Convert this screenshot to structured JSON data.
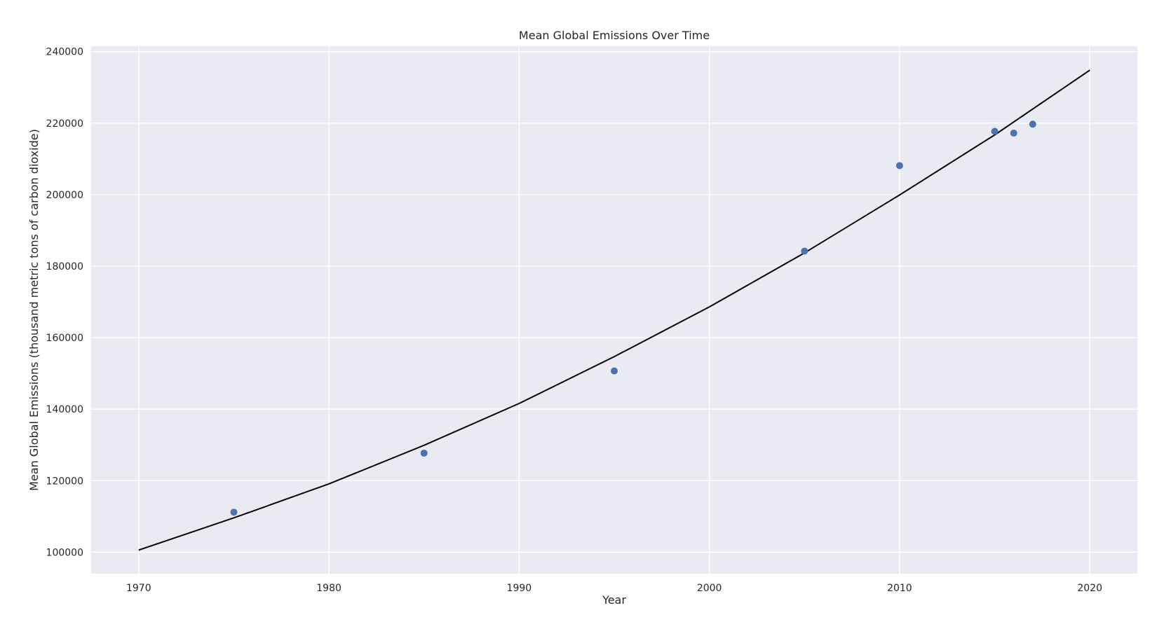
{
  "chart_data": {
    "type": "scatter",
    "title": "Mean Global Emissions Over Time",
    "xlabel": "Year",
    "ylabel": "Mean Global Emissions (thousand metric tons of carbon dioxide)",
    "xlim": [
      1967.5,
      2022.5
    ],
    "ylim": [
      94000,
      241500
    ],
    "x_ticks": [
      1970,
      1980,
      1990,
      2000,
      2010,
      2020
    ],
    "y_ticks": [
      100000,
      120000,
      140000,
      160000,
      180000,
      200000,
      220000,
      240000
    ],
    "grid": true,
    "series": [
      {
        "type": "scatter",
        "x": [
          1975,
          1985,
          1995,
          2005,
          2010,
          2015,
          2016,
          2017
        ],
        "y": [
          111200,
          127700,
          150700,
          184200,
          208100,
          217700,
          217200,
          219700
        ]
      },
      {
        "type": "line",
        "x": [
          1970,
          1975,
          1980,
          1985,
          1990,
          1995,
          2000,
          2005,
          2010,
          2015,
          2020
        ],
        "y": [
          100600,
          109600,
          119100,
          129900,
          141600,
          154700,
          168600,
          183700,
          199900,
          216700,
          234800
        ]
      }
    ]
  },
  "colors": {
    "background": "#eaeaf2",
    "grid": "#ffffff",
    "points": "#4c72b0",
    "line": "#000000"
  }
}
